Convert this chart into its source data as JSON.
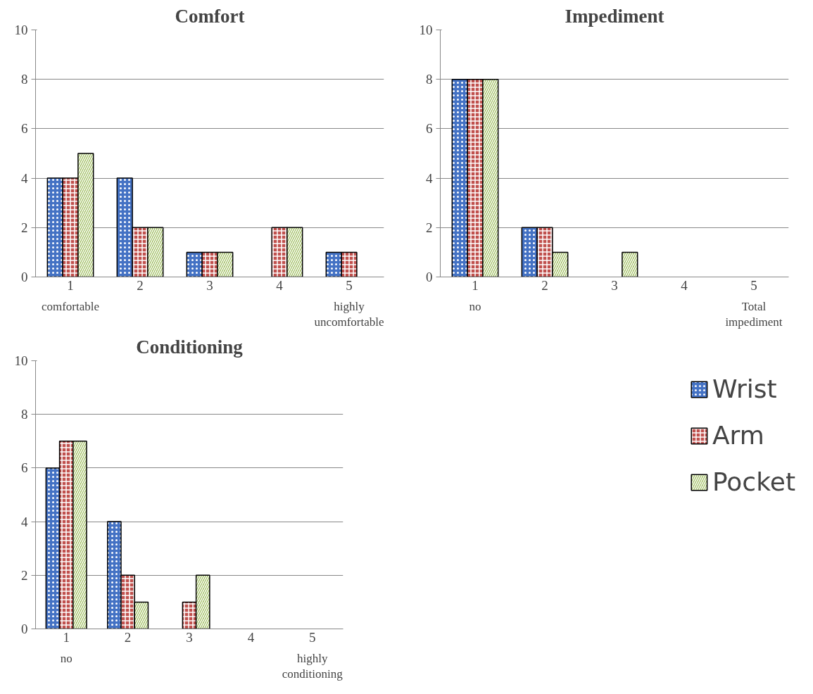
{
  "chart_data": [
    {
      "type": "bar",
      "title": "Comfort",
      "categories": [
        "1",
        "2",
        "3",
        "4",
        "5"
      ],
      "ylim": [
        0,
        10
      ],
      "yticks": [
        0,
        2,
        4,
        6,
        8,
        10
      ],
      "grid": "y",
      "legend": false,
      "annotations": [
        "comfortable",
        "highly uncomfortable"
      ],
      "series": [
        {
          "color": "#4472c4",
          "values": [
            4,
            4,
            1,
            0,
            1
          ]
        },
        {
          "color": "#c0504d",
          "values": [
            4,
            2,
            1,
            2,
            1
          ]
        },
        {
          "color": "#9bbb59",
          "values": [
            5,
            2,
            1,
            2,
            0
          ]
        }
      ]
    },
    {
      "type": "bar",
      "title": "Impediment",
      "categories": [
        "1",
        "2",
        "3",
        "4",
        "5"
      ],
      "ylim": [
        0,
        10
      ],
      "yticks": [
        0,
        2,
        4,
        6,
        8,
        10
      ],
      "grid": "y",
      "legend": false,
      "annotations": [
        "no",
        "Total impediment"
      ],
      "series": [
        {
          "color": "#4472c4",
          "values": [
            8,
            2,
            0,
            0,
            0
          ]
        },
        {
          "color": "#c0504d",
          "values": [
            8,
            2,
            0,
            0,
            0
          ]
        },
        {
          "color": "#9bbb59",
          "values": [
            8,
            1,
            1,
            0,
            0
          ]
        }
      ]
    },
    {
      "type": "bar",
      "title": "Conditioning",
      "categories": [
        "1",
        "2",
        "3",
        "4",
        "5"
      ],
      "ylim": [
        0,
        10
      ],
      "yticks": [
        0,
        2,
        4,
        6,
        8,
        10
      ],
      "grid": "y",
      "legend": "right",
      "annotations": [
        "no",
        "highly conditioning"
      ],
      "series": [
        {
          "name": "Wrist",
          "color": "#4472c4",
          "values": [
            6,
            4,
            0,
            0,
            0
          ]
        },
        {
          "name": "Arm",
          "color": "#c0504d",
          "values": [
            7,
            2,
            1,
            0,
            0
          ]
        },
        {
          "name": "Pocket",
          "color": "#9bbb59",
          "values": [
            7,
            1,
            2,
            0,
            0
          ]
        }
      ]
    }
  ]
}
